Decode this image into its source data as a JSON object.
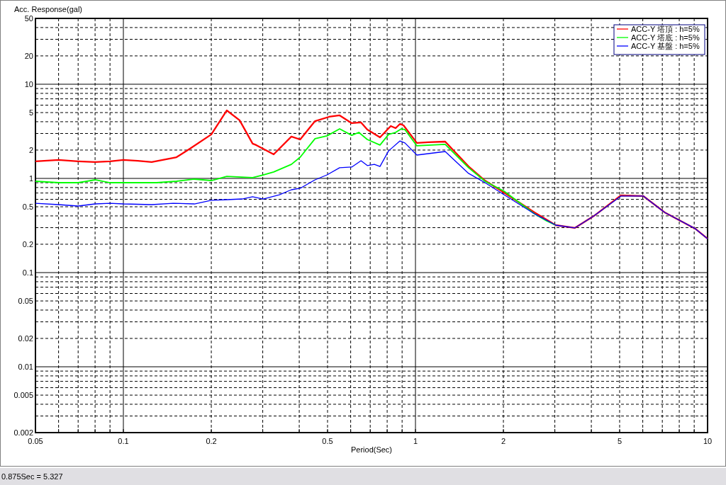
{
  "chart_data": {
    "type": "line",
    "ylabel": "Acc. Response(gal)",
    "xlabel": "Period(Sec)",
    "log": "xy",
    "grid": true,
    "legend": "top right",
    "xlim": [
      0.05,
      10
    ],
    "ylim": [
      0.002,
      50
    ],
    "xticks": [
      0.05,
      {
        "value": 0.06,
        "label": null
      },
      {
        "value": 0.07,
        "label": null
      },
      {
        "value": 0.08,
        "label": null
      },
      {
        "value": 0.09,
        "label": null
      },
      0.1,
      0.2,
      {
        "value": 0.3,
        "label": null
      },
      {
        "value": 0.4,
        "label": null
      },
      0.5,
      {
        "value": 0.6,
        "label": null
      },
      {
        "value": 0.7,
        "label": null
      },
      {
        "value": 0.8,
        "label": null
      },
      {
        "value": 0.9,
        "label": null
      },
      1,
      2,
      {
        "value": 3,
        "label": null
      },
      {
        "value": 4,
        "label": null
      },
      5,
      {
        "value": 6,
        "label": null
      },
      {
        "value": 7,
        "label": null
      },
      {
        "value": 8,
        "label": null
      },
      {
        "value": 9,
        "label": null
      },
      10
    ],
    "yticks": [
      0.002,
      {
        "value": 0.003,
        "label": null
      },
      {
        "value": 0.004,
        "label": null
      },
      0.005,
      {
        "value": 0.006,
        "label": null
      },
      {
        "value": 0.007,
        "label": null
      },
      {
        "value": 0.008,
        "label": null
      },
      {
        "value": 0.009,
        "label": null
      },
      0.01,
      0.02,
      {
        "value": 0.03,
        "label": null
      },
      {
        "value": 0.04,
        "label": null
      },
      0.05,
      {
        "value": 0.06,
        "label": null
      },
      {
        "value": 0.07,
        "label": null
      },
      {
        "value": 0.08,
        "label": null
      },
      {
        "value": 0.09,
        "label": null
      },
      0.1,
      0.2,
      {
        "value": 0.3,
        "label": null
      },
      {
        "value": 0.4,
        "label": null
      },
      0.5,
      {
        "value": 0.6,
        "label": null
      },
      {
        "value": 0.7,
        "label": null
      },
      {
        "value": 0.8,
        "label": null
      },
      {
        "value": 0.9,
        "label": null
      },
      1,
      2,
      {
        "value": 3,
        "label": null
      },
      {
        "value": 4,
        "label": null
      },
      5,
      {
        "value": 6,
        "label": null
      },
      {
        "value": 7,
        "label": null
      },
      {
        "value": 8,
        "label": null
      },
      {
        "value": 9,
        "label": null
      },
      10,
      20,
      {
        "value": 30,
        "label": null
      },
      {
        "value": 40,
        "label": null
      },
      50
    ],
    "annotations": [
      "0.875Sec = 5.327"
    ],
    "series": [
      {
        "name": "ACC-Y 塔頂 : h=5%",
        "color": "#ff0000",
        "x": [
          0.05,
          0.06,
          0.07,
          0.08,
          0.09,
          0.1,
          0.112,
          0.125,
          0.152,
          0.169,
          0.2,
          0.226,
          0.25,
          0.277,
          0.285,
          0.327,
          0.376,
          0.403,
          0.453,
          0.506,
          0.55,
          0.605,
          0.651,
          0.684,
          0.756,
          0.823,
          0.855,
          0.885,
          0.91,
          1.011,
          1.105,
          1.264,
          1.52,
          1.73,
          2.01,
          2.555,
          3.02,
          3.51,
          4.08,
          5.05,
          6.03,
          7.13,
          9.07,
          10
        ],
        "values": [
          1.52,
          1.57,
          1.52,
          1.49,
          1.52,
          1.57,
          1.54,
          1.49,
          1.68,
          2.07,
          2.93,
          5.27,
          4.14,
          2.34,
          2.26,
          1.8,
          2.78,
          2.59,
          4.06,
          4.51,
          4.67,
          3.86,
          3.93,
          3.3,
          2.73,
          3.6,
          3.42,
          3.79,
          3.66,
          2.38,
          2.42,
          2.46,
          1.34,
          0.949,
          0.707,
          0.436,
          0.319,
          0.298,
          0.399,
          0.66,
          0.649,
          0.436,
          0.293,
          0.229
        ]
      },
      {
        "name": "ACC-Y 塔底 : h=5%",
        "color": "#00ff00",
        "x": [
          0.05,
          0.06,
          0.07,
          0.08,
          0.09,
          0.1,
          0.13,
          0.152,
          0.175,
          0.2,
          0.226,
          0.277,
          0.301,
          0.327,
          0.376,
          0.403,
          0.453,
          0.498,
          0.55,
          0.605,
          0.64,
          0.684,
          0.756,
          0.809,
          0.855,
          0.894,
          0.92,
          1.011,
          1.264,
          1.52,
          1.73,
          2.01,
          2.555,
          2.81,
          3.02
        ],
        "values": [
          0.933,
          0.901,
          0.901,
          0.966,
          0.901,
          0.901,
          0.901,
          0.933,
          0.983,
          0.949,
          1.05,
          1.02,
          1.09,
          1.17,
          1.41,
          1.68,
          2.64,
          2.83,
          3.36,
          2.87,
          3.08,
          2.59,
          2.26,
          2.93,
          3.08,
          3.36,
          3.3,
          2.22,
          2.3,
          1.3,
          0.933,
          0.732,
          0.421,
          0.354,
          0.319
        ]
      },
      {
        "name": "ACC-Y 基盤 : h=5%",
        "color": "#0000ff",
        "x": [
          0.05,
          0.06,
          0.07,
          0.08,
          0.09,
          0.1,
          0.125,
          0.148,
          0.175,
          0.2,
          0.226,
          0.255,
          0.277,
          0.301,
          0.342,
          0.376,
          0.403,
          0.453,
          0.498,
          0.55,
          0.605,
          0.651,
          0.684,
          0.723,
          0.756,
          0.809,
          0.885,
          0.92,
          1.011,
          1.264,
          1.52,
          1.73,
          2.01,
          2.555,
          3.02,
          3.51,
          4.08,
          5.05,
          6.03,
          7.13,
          9.07,
          10
        ],
        "values": [
          0.545,
          0.527,
          0.509,
          0.536,
          0.545,
          0.536,
          0.527,
          0.545,
          0.536,
          0.585,
          0.595,
          0.605,
          0.638,
          0.605,
          0.671,
          0.758,
          0.785,
          0.966,
          1.09,
          1.3,
          1.32,
          1.54,
          1.37,
          1.41,
          1.34,
          1.96,
          2.5,
          2.38,
          1.77,
          1.93,
          1.13,
          0.901,
          0.671,
          0.421,
          0.319,
          0.298,
          0.399,
          0.649,
          0.649,
          0.436,
          0.293,
          0.229
        ]
      }
    ]
  }
}
